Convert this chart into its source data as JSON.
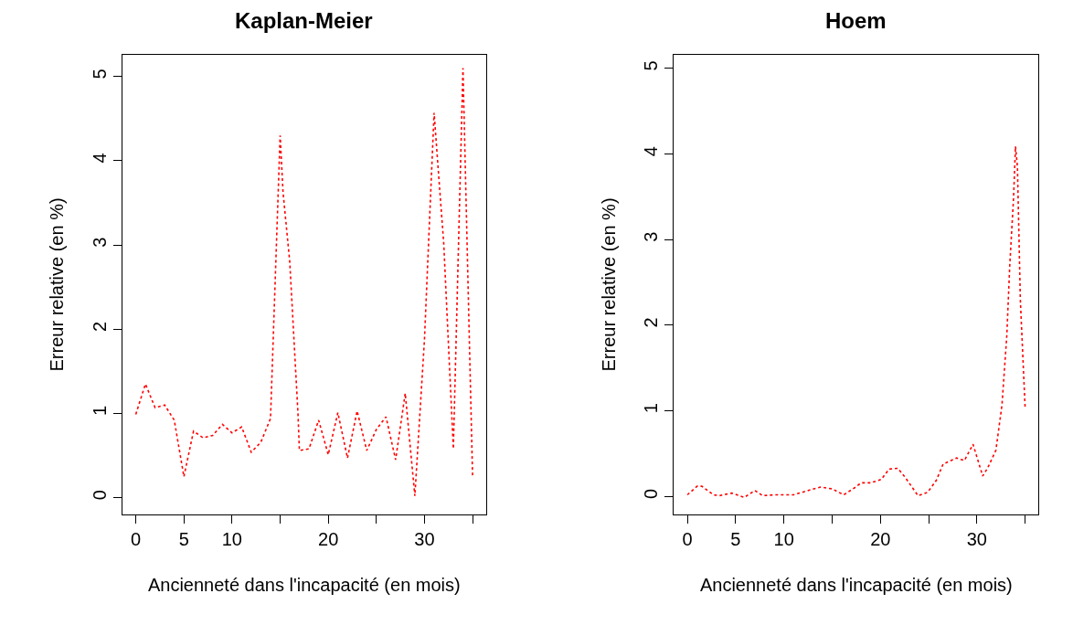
{
  "chart_data": [
    {
      "type": "line",
      "title": "Kaplan-Meier",
      "xlabel": "Ancienneté dans l'incapacité (en mois)",
      "ylabel": "Erreur relative (en %)",
      "x": [
        0,
        1,
        2,
        3,
        4,
        5,
        6,
        7,
        8,
        9,
        10,
        11,
        12,
        13,
        14,
        15,
        15.3,
        16,
        16.85,
        17,
        18,
        19,
        20,
        21,
        22,
        23,
        24,
        25,
        26,
        27,
        28,
        29,
        30,
        31,
        31.4,
        32,
        33,
        34,
        34.75,
        35
      ],
      "series": [
        {
          "color": "#ff0000",
          "values": [
            0.99,
            1.35,
            1.07,
            1.1,
            0.92,
            0.25,
            0.79,
            0.71,
            0.74,
            0.87,
            0.77,
            0.84,
            0.54,
            0.66,
            0.94,
            4.3,
            3.63,
            2.8,
            1.01,
            0.56,
            0.58,
            0.92,
            0.51,
            1.01,
            0.47,
            1.03,
            0.56,
            0.81,
            0.96,
            0.45,
            1.24,
            0.02,
            1.88,
            4.57,
            3.94,
            3.02,
            0.58,
            5.1,
            1.45,
            0.24
          ]
        }
      ],
      "xlim": [
        -1.4,
        36.4
      ],
      "ylim": [
        -0.2,
        5.26
      ],
      "xticks": [
        0,
        5,
        10,
        {
          "value": 15,
          "label": null
        },
        20,
        {
          "value": 25,
          "label": null
        },
        30,
        {
          "value": 35,
          "label": null
        }
      ],
      "yticks": [
        0,
        1,
        2,
        3,
        4,
        5
      ],
      "marker": "none",
      "line_style": "dotted"
    },
    {
      "type": "line",
      "title": "Hoem",
      "xlabel": "Ancienneté dans l'incapacité (en mois)",
      "ylabel": "Erreur relative (en %)",
      "x": [
        0,
        1,
        1.5,
        2.7,
        3.3,
        4.6,
        5.9,
        7,
        7.8,
        9,
        11,
        13.1,
        13.8,
        15,
        16.2,
        17.3,
        18,
        19,
        20.1,
        20.9,
        21.8,
        22.6,
        23.9,
        24.9,
        25.8,
        26.5,
        27.9,
        28.7,
        29.6,
        30.6,
        31.1,
        31.97,
        32.6,
        33.1,
        33.4,
        33.8,
        34,
        34.2,
        34.5,
        35
      ],
      "series": [
        {
          "color": "#ff0000",
          "values": [
            0.02,
            0.12,
            0.12,
            0.02,
            0.01,
            0.04,
            -0.01,
            0.07,
            0.01,
            0.02,
            0.02,
            0.09,
            0.11,
            0.09,
            0.02,
            0.1,
            0.16,
            0.16,
            0.2,
            0.32,
            0.33,
            0.22,
            0.01,
            0.05,
            0.19,
            0.38,
            0.45,
            0.42,
            0.61,
            0.24,
            0.33,
            0.54,
            1.07,
            1.88,
            2.69,
            3.49,
            4.09,
            3.85,
            2.3,
            1.03
          ]
        }
      ],
      "xlim": [
        -1.4,
        36.4
      ],
      "ylim": [
        -0.21,
        5.16
      ],
      "xticks": [
        0,
        5,
        10,
        {
          "value": 15,
          "label": null
        },
        20,
        {
          "value": 25,
          "label": null
        },
        30,
        {
          "value": 35,
          "label": null
        }
      ],
      "yticks": [
        0,
        1,
        2,
        3,
        4,
        5
      ],
      "marker": "none",
      "line_style": "dotted"
    }
  ]
}
